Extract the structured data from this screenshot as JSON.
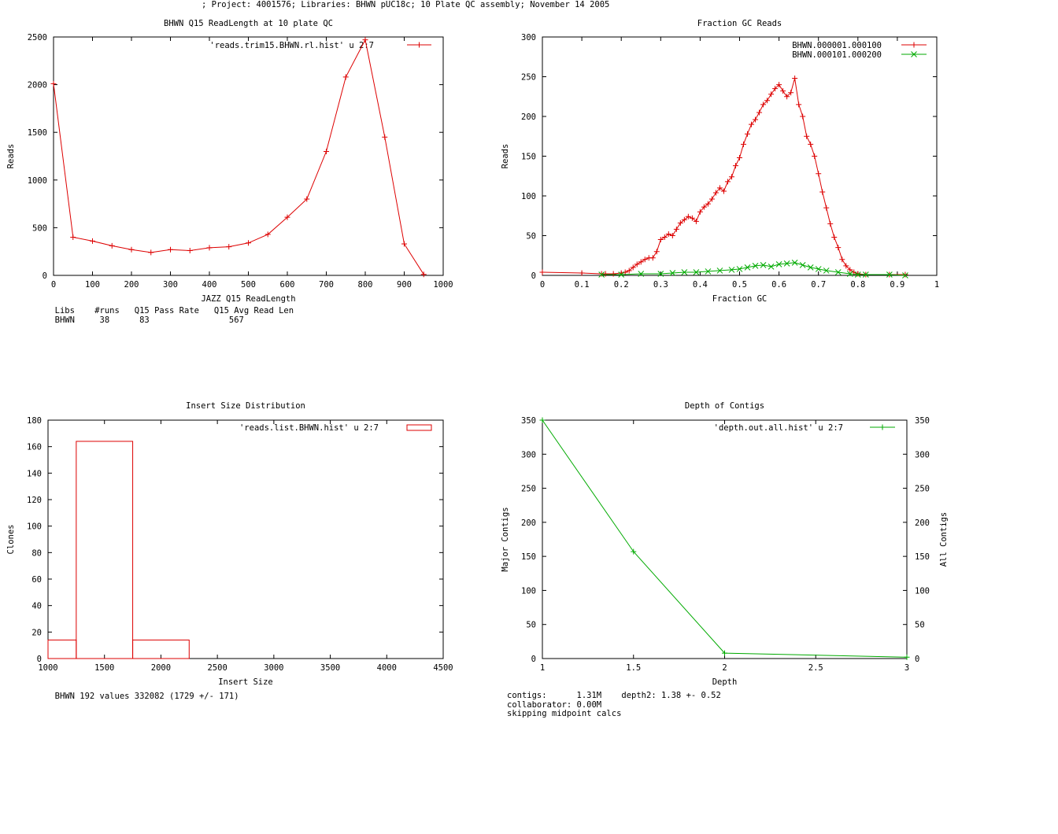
{
  "header": "; Project: 4001576; Libraries: BHWN pUC18c; 10 Plate QC assembly; November 14 2005",
  "colors": {
    "red": "#dd0000",
    "green": "#00aa00",
    "axis": "#000000"
  },
  "chart_data": [
    {
      "type": "line",
      "title": "BHWN Q15 ReadLength at 10 plate QC",
      "xlabel": "JAZZ Q15 ReadLength",
      "ylabel": "Reads",
      "xlim": [
        0,
        1000
      ],
      "ylim": [
        0,
        2500
      ],
      "xticks": [
        0,
        100,
        200,
        300,
        400,
        500,
        600,
        700,
        800,
        900,
        1000
      ],
      "yticks": [
        0,
        500,
        1000,
        1500,
        2000,
        2500
      ],
      "legend_position": "top-right",
      "series": [
        {
          "name": "'reads.trim15.BHWN.rl.hist' u 2:7",
          "color": "red",
          "marker": "plus",
          "x": [
            0,
            50,
            100,
            150,
            200,
            250,
            300,
            350,
            400,
            450,
            500,
            550,
            600,
            650,
            700,
            750,
            800,
            850,
            900,
            950
          ],
          "y": [
            2010,
            400,
            360,
            310,
            270,
            240,
            270,
            260,
            290,
            300,
            340,
            430,
            610,
            800,
            1300,
            2080,
            2470,
            1450,
            330,
            10
          ]
        }
      ]
    },
    {
      "type": "line",
      "title": "Fraction GC Reads",
      "xlabel": "Fraction GC",
      "ylabel": "Reads",
      "xlim": [
        0,
        1
      ],
      "ylim": [
        0,
        300
      ],
      "xticks": [
        0,
        0.1,
        0.2,
        0.3,
        0.4,
        0.5,
        0.6,
        0.7,
        0.8,
        0.9,
        1
      ],
      "yticks": [
        0,
        50,
        100,
        150,
        200,
        250,
        300
      ],
      "legend_position": "top-right",
      "series": [
        {
          "name": "BHWN.000001.000100",
          "color": "red",
          "marker": "plus",
          "x": [
            0,
            0.1,
            0.15,
            0.16,
            0.18,
            0.2,
            0.21,
            0.22,
            0.23,
            0.24,
            0.25,
            0.26,
            0.27,
            0.28,
            0.29,
            0.3,
            0.31,
            0.32,
            0.33,
            0.34,
            0.35,
            0.36,
            0.37,
            0.38,
            0.39,
            0.4,
            0.41,
            0.42,
            0.43,
            0.44,
            0.45,
            0.46,
            0.47,
            0.48,
            0.49,
            0.5,
            0.51,
            0.52,
            0.53,
            0.54,
            0.55,
            0.56,
            0.57,
            0.58,
            0.59,
            0.6,
            0.61,
            0.62,
            0.63,
            0.64,
            0.65,
            0.66,
            0.67,
            0.68,
            0.69,
            0.7,
            0.71,
            0.72,
            0.73,
            0.74,
            0.75,
            0.76,
            0.77,
            0.78,
            0.79,
            0.8,
            0.82,
            0.88,
            0.92
          ],
          "y": [
            4,
            3,
            2,
            2,
            2,
            3,
            4,
            6,
            10,
            14,
            17,
            20,
            22,
            22,
            30,
            45,
            48,
            52,
            50,
            58,
            66,
            70,
            74,
            72,
            68,
            80,
            86,
            90,
            96,
            104,
            110,
            106,
            118,
            124,
            138,
            148,
            165,
            178,
            190,
            196,
            205,
            215,
            220,
            228,
            235,
            240,
            232,
            225,
            230,
            248,
            215,
            200,
            175,
            165,
            150,
            128,
            105,
            85,
            65,
            48,
            35,
            20,
            12,
            7,
            4,
            2,
            1,
            1,
            1
          ]
        },
        {
          "name": "BHWN.000101.000200",
          "color": "green",
          "marker": "cross",
          "x": [
            0.15,
            0.2,
            0.25,
            0.3,
            0.33,
            0.36,
            0.39,
            0.42,
            0.45,
            0.48,
            0.5,
            0.52,
            0.54,
            0.56,
            0.58,
            0.6,
            0.62,
            0.64,
            0.66,
            0.68,
            0.7,
            0.72,
            0.75,
            0.78,
            0.8,
            0.82,
            0.88,
            0.92
          ],
          "y": [
            1,
            1,
            2,
            2,
            3,
            4,
            4,
            5,
            6,
            7,
            8,
            10,
            12,
            13,
            11,
            14,
            15,
            16,
            13,
            10,
            8,
            6,
            4,
            2,
            1,
            1,
            1,
            0
          ]
        }
      ]
    },
    {
      "type": "bar",
      "title": "Insert Size Distribution",
      "xlabel": "Insert Size",
      "ylabel": "Clones",
      "xlim": [
        1000,
        4500
      ],
      "ylim": [
        0,
        180
      ],
      "xticks": [
        1000,
        1500,
        2000,
        2500,
        3000,
        3500,
        4000,
        4500
      ],
      "yticks": [
        0,
        20,
        40,
        60,
        80,
        100,
        120,
        140,
        160,
        180
      ],
      "legend_position": "top-right",
      "series": [
        {
          "name": "'reads.list.BHWN.hist' u 2:7",
          "color": "red",
          "bins": [
            {
              "from": 1000,
              "to": 1250,
              "value": 14
            },
            {
              "from": 1250,
              "to": 1750,
              "value": 164
            },
            {
              "from": 1750,
              "to": 2250,
              "value": 14
            }
          ]
        }
      ]
    },
    {
      "type": "line",
      "title": "Depth of Contigs",
      "xlabel": "Depth",
      "ylabel": "Major Contigs",
      "y2label": "All Contigs",
      "xlim": [
        1,
        3
      ],
      "ylim": [
        0,
        350
      ],
      "xticks": [
        1,
        1.5,
        2,
        2.5,
        3
      ],
      "xtick_labels": [
        "1",
        "1.5",
        "2",
        "2.5",
        "3"
      ],
      "yticks": [
        0,
        50,
        100,
        150,
        200,
        250,
        300,
        350
      ],
      "legend_position": "top-right",
      "series": [
        {
          "name": "'depth.out.all.hist' u 2:7",
          "color": "green",
          "marker": "plus",
          "x": [
            1,
            1.5,
            2,
            3
          ],
          "y": [
            350,
            157,
            8,
            2
          ]
        }
      ]
    }
  ],
  "annotations": {
    "readlength": [
      "  Libs    #runs   Q15 Pass Rate   Q15 Avg Read Len",
      "  BHWN     38      83                567"
    ],
    "insert": "  BHWN 192 values 332082 (1729 +/- 171)",
    "depth": [
      "contigs:      1.31M    depth2: 1.38 +- 0.52",
      "collaborator: 0.00M",
      "skipping midpoint calcs"
    ]
  }
}
